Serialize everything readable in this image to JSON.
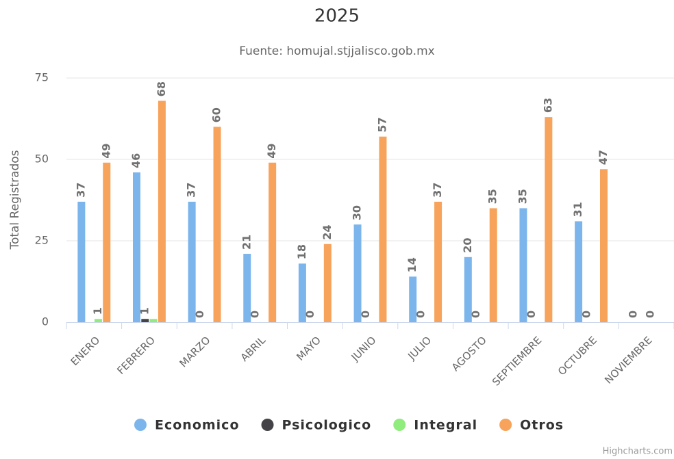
{
  "chart_data": {
    "type": "bar",
    "title": "2025",
    "subtitle": "Fuente: homujal.stjjalisco.gob.mx",
    "y_axis_label": "Total Registrados",
    "credits": "Highcharts.com",
    "categories": [
      "ENERO",
      "FEBRERO",
      "MARZO",
      "ABRIL",
      "MAYO",
      "JUNIO",
      "JULIO",
      "AGOSTO",
      "SEPTIEMBRE",
      "OCTUBRE",
      "NOVIEMBRE"
    ],
    "series": [
      {
        "name": "Economico",
        "color": "#7cb5ec",
        "values": [
          37,
          46,
          37,
          21,
          18,
          30,
          14,
          20,
          35,
          31,
          0
        ]
      },
      {
        "name": "Psicologico",
        "color": "#434348",
        "values": [
          0,
          1,
          0,
          0,
          0,
          0,
          0,
          0,
          0,
          0,
          0
        ]
      },
      {
        "name": "Integral",
        "color": "#90ed7d",
        "values": [
          1,
          1,
          0,
          0,
          0,
          0,
          0,
          0,
          0,
          0,
          0
        ]
      },
      {
        "name": "Otros",
        "color": "#f7a35c",
        "values": [
          49,
          68,
          60,
          49,
          24,
          57,
          37,
          35,
          63,
          47,
          0
        ]
      }
    ],
    "ylim": [
      0,
      75
    ],
    "yticks": [
      0,
      25,
      50,
      75
    ],
    "grid": true,
    "legend": "bottom"
  }
}
